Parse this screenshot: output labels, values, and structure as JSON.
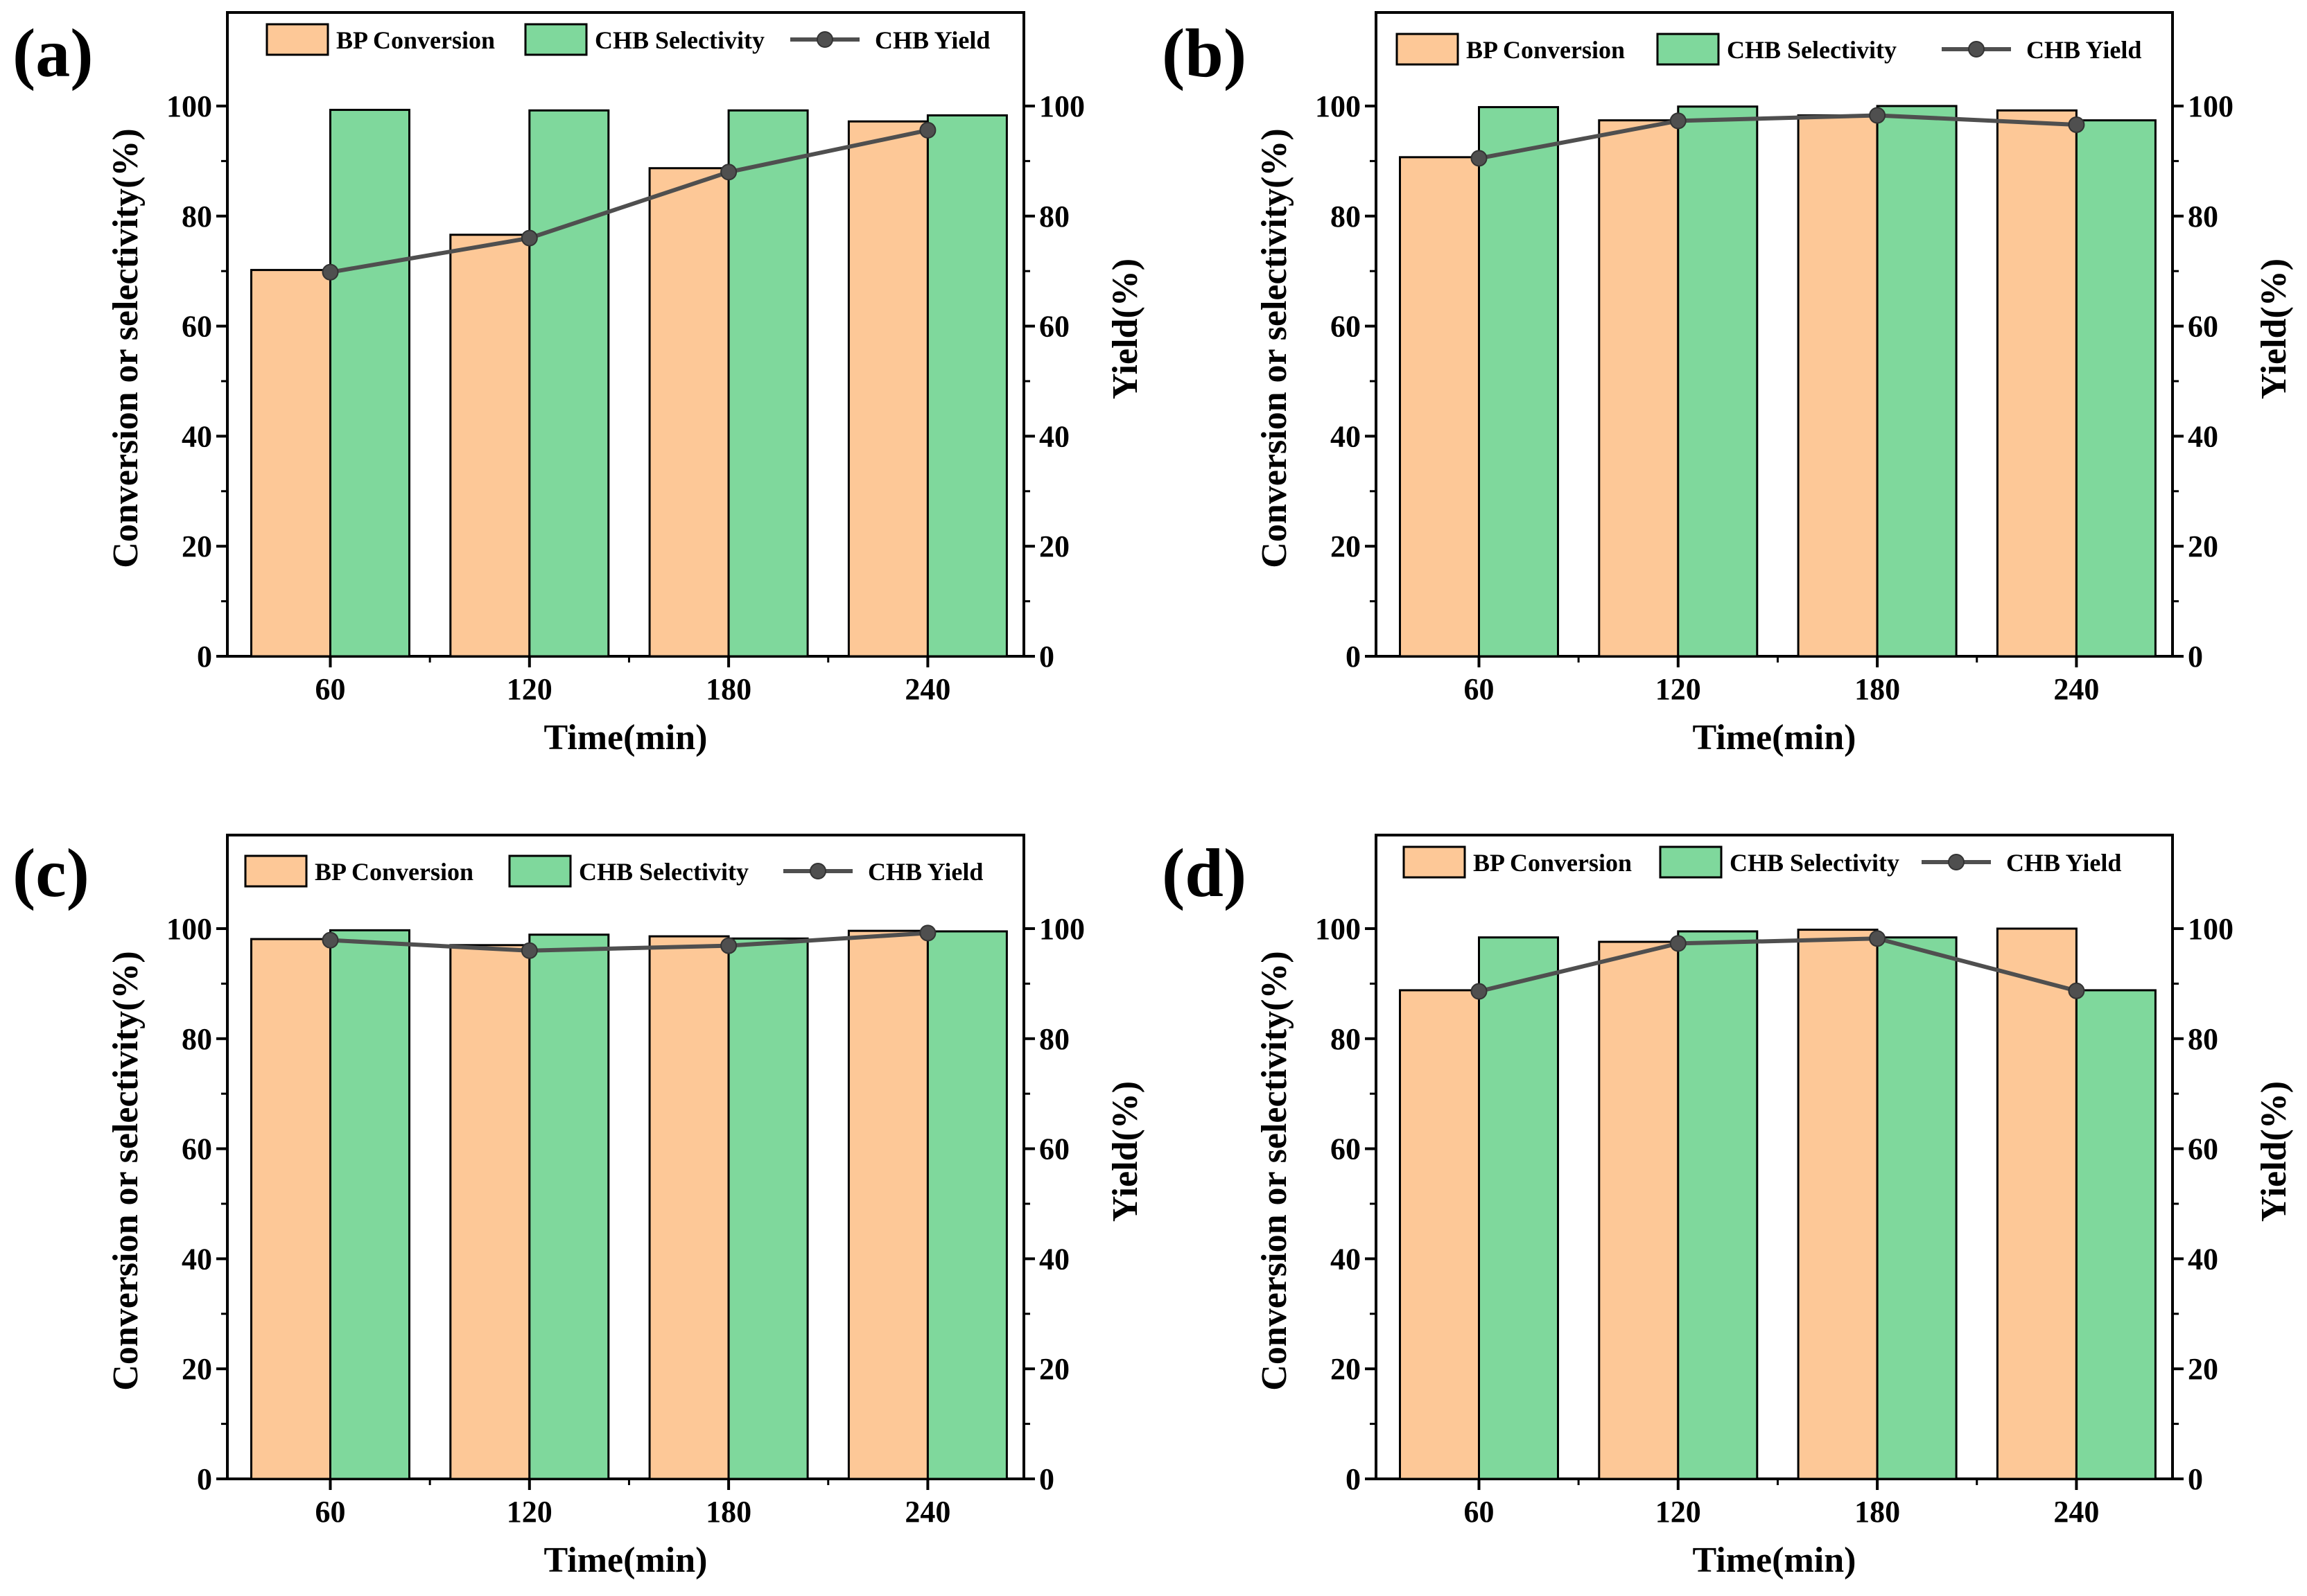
{
  "chart_data": [
    {
      "type": "bar",
      "panel_label": "(a)",
      "categories": [
        "60",
        "120",
        "180",
        "240"
      ],
      "series": [
        {
          "name": "BP Conversion",
          "kind": "bar",
          "color": "#FDC897",
          "values": [
            70.2,
            76.6,
            88.7,
            97.2
          ]
        },
        {
          "name": "CHB Selectivity",
          "kind": "bar",
          "color": "#7FD89C",
          "values": [
            99.3,
            99.2,
            99.2,
            98.3
          ]
        },
        {
          "name": "CHB Yield",
          "kind": "line",
          "color": "#4F4F4F",
          "axis": "right",
          "values": [
            69.8,
            76.0,
            88.0,
            95.6
          ]
        }
      ],
      "xlabel": "Time(min)",
      "ylabel": "Conversion or selectivity(%)",
      "y2label": "Yield(%)",
      "ylim": [
        0,
        117
      ],
      "y2lim": [
        0,
        117
      ],
      "yticks": [
        "0",
        "20",
        "40",
        "60",
        "80",
        "100"
      ],
      "y2ticks": [
        "0",
        "20",
        "40",
        "60",
        "80",
        "100"
      ],
      "legend_position": "top"
    },
    {
      "type": "bar",
      "panel_label": "(b)",
      "categories": [
        "60",
        "120",
        "180",
        "240"
      ],
      "series": [
        {
          "name": "BP Conversion",
          "kind": "bar",
          "color": "#FDC897",
          "values": [
            90.7,
            97.4,
            98.3,
            99.2
          ]
        },
        {
          "name": "CHB Selectivity",
          "kind": "bar",
          "color": "#7FD89C",
          "values": [
            99.8,
            99.9,
            100.0,
            97.4
          ]
        },
        {
          "name": "CHB Yield",
          "kind": "line",
          "color": "#4F4F4F",
          "axis": "right",
          "values": [
            90.5,
            97.3,
            98.3,
            96.6
          ]
        }
      ],
      "xlabel": "Time(min)",
      "ylabel": "Conversion or selectivity(%)",
      "y2label": "Yield(%)",
      "ylim": [
        0,
        117
      ],
      "y2lim": [
        0,
        117
      ],
      "yticks": [
        "0",
        "20",
        "40",
        "60",
        "80",
        "100"
      ],
      "y2ticks": [
        "0",
        "20",
        "40",
        "60",
        "80",
        "100"
      ],
      "legend_position": "top"
    },
    {
      "type": "bar",
      "panel_label": "(c)",
      "categories": [
        "60",
        "120",
        "180",
        "240"
      ],
      "series": [
        {
          "name": "BP Conversion",
          "kind": "bar",
          "color": "#FDC897",
          "values": [
            98.1,
            97.0,
            98.6,
            99.6
          ]
        },
        {
          "name": "CHB Selectivity",
          "kind": "bar",
          "color": "#7FD89C",
          "values": [
            99.7,
            98.9,
            98.2,
            99.5
          ]
        },
        {
          "name": "CHB Yield",
          "kind": "line",
          "color": "#4F4F4F",
          "axis": "right",
          "values": [
            97.9,
            96.0,
            96.9,
            99.2
          ]
        }
      ],
      "xlabel": "Time(min)",
      "ylabel": "Conversion or selectivity(%)",
      "y2label": "Yield(%)",
      "ylim": [
        0,
        117
      ],
      "y2lim": [
        0,
        117
      ],
      "yticks": [
        "0",
        "20",
        "40",
        "60",
        "80",
        "100"
      ],
      "y2ticks": [
        "0",
        "20",
        "40",
        "60",
        "80",
        "100"
      ],
      "legend_position": "top"
    },
    {
      "type": "bar",
      "panel_label": "(d)",
      "categories": [
        "60",
        "120",
        "180",
        "240"
      ],
      "series": [
        {
          "name": "BP Conversion",
          "kind": "bar",
          "color": "#FDC897",
          "values": [
            88.8,
            97.6,
            99.8,
            100.0
          ]
        },
        {
          "name": "CHB Selectivity",
          "kind": "bar",
          "color": "#7FD89C",
          "values": [
            98.4,
            99.5,
            98.4,
            88.8
          ]
        },
        {
          "name": "CHB Yield",
          "kind": "line",
          "color": "#4F4F4F",
          "axis": "right",
          "values": [
            88.6,
            97.3,
            98.2,
            88.7
          ]
        }
      ],
      "xlabel": "Time(min)",
      "ylabel": "Conversion or selectivity(%)",
      "y2label": "Yield(%)",
      "ylim": [
        0,
        117
      ],
      "y2lim": [
        0,
        117
      ],
      "yticks": [
        "0",
        "20",
        "40",
        "60",
        "80",
        "100"
      ],
      "y2ticks": [
        "0",
        "20",
        "40",
        "60",
        "80",
        "100"
      ],
      "legend_position": "top"
    }
  ]
}
